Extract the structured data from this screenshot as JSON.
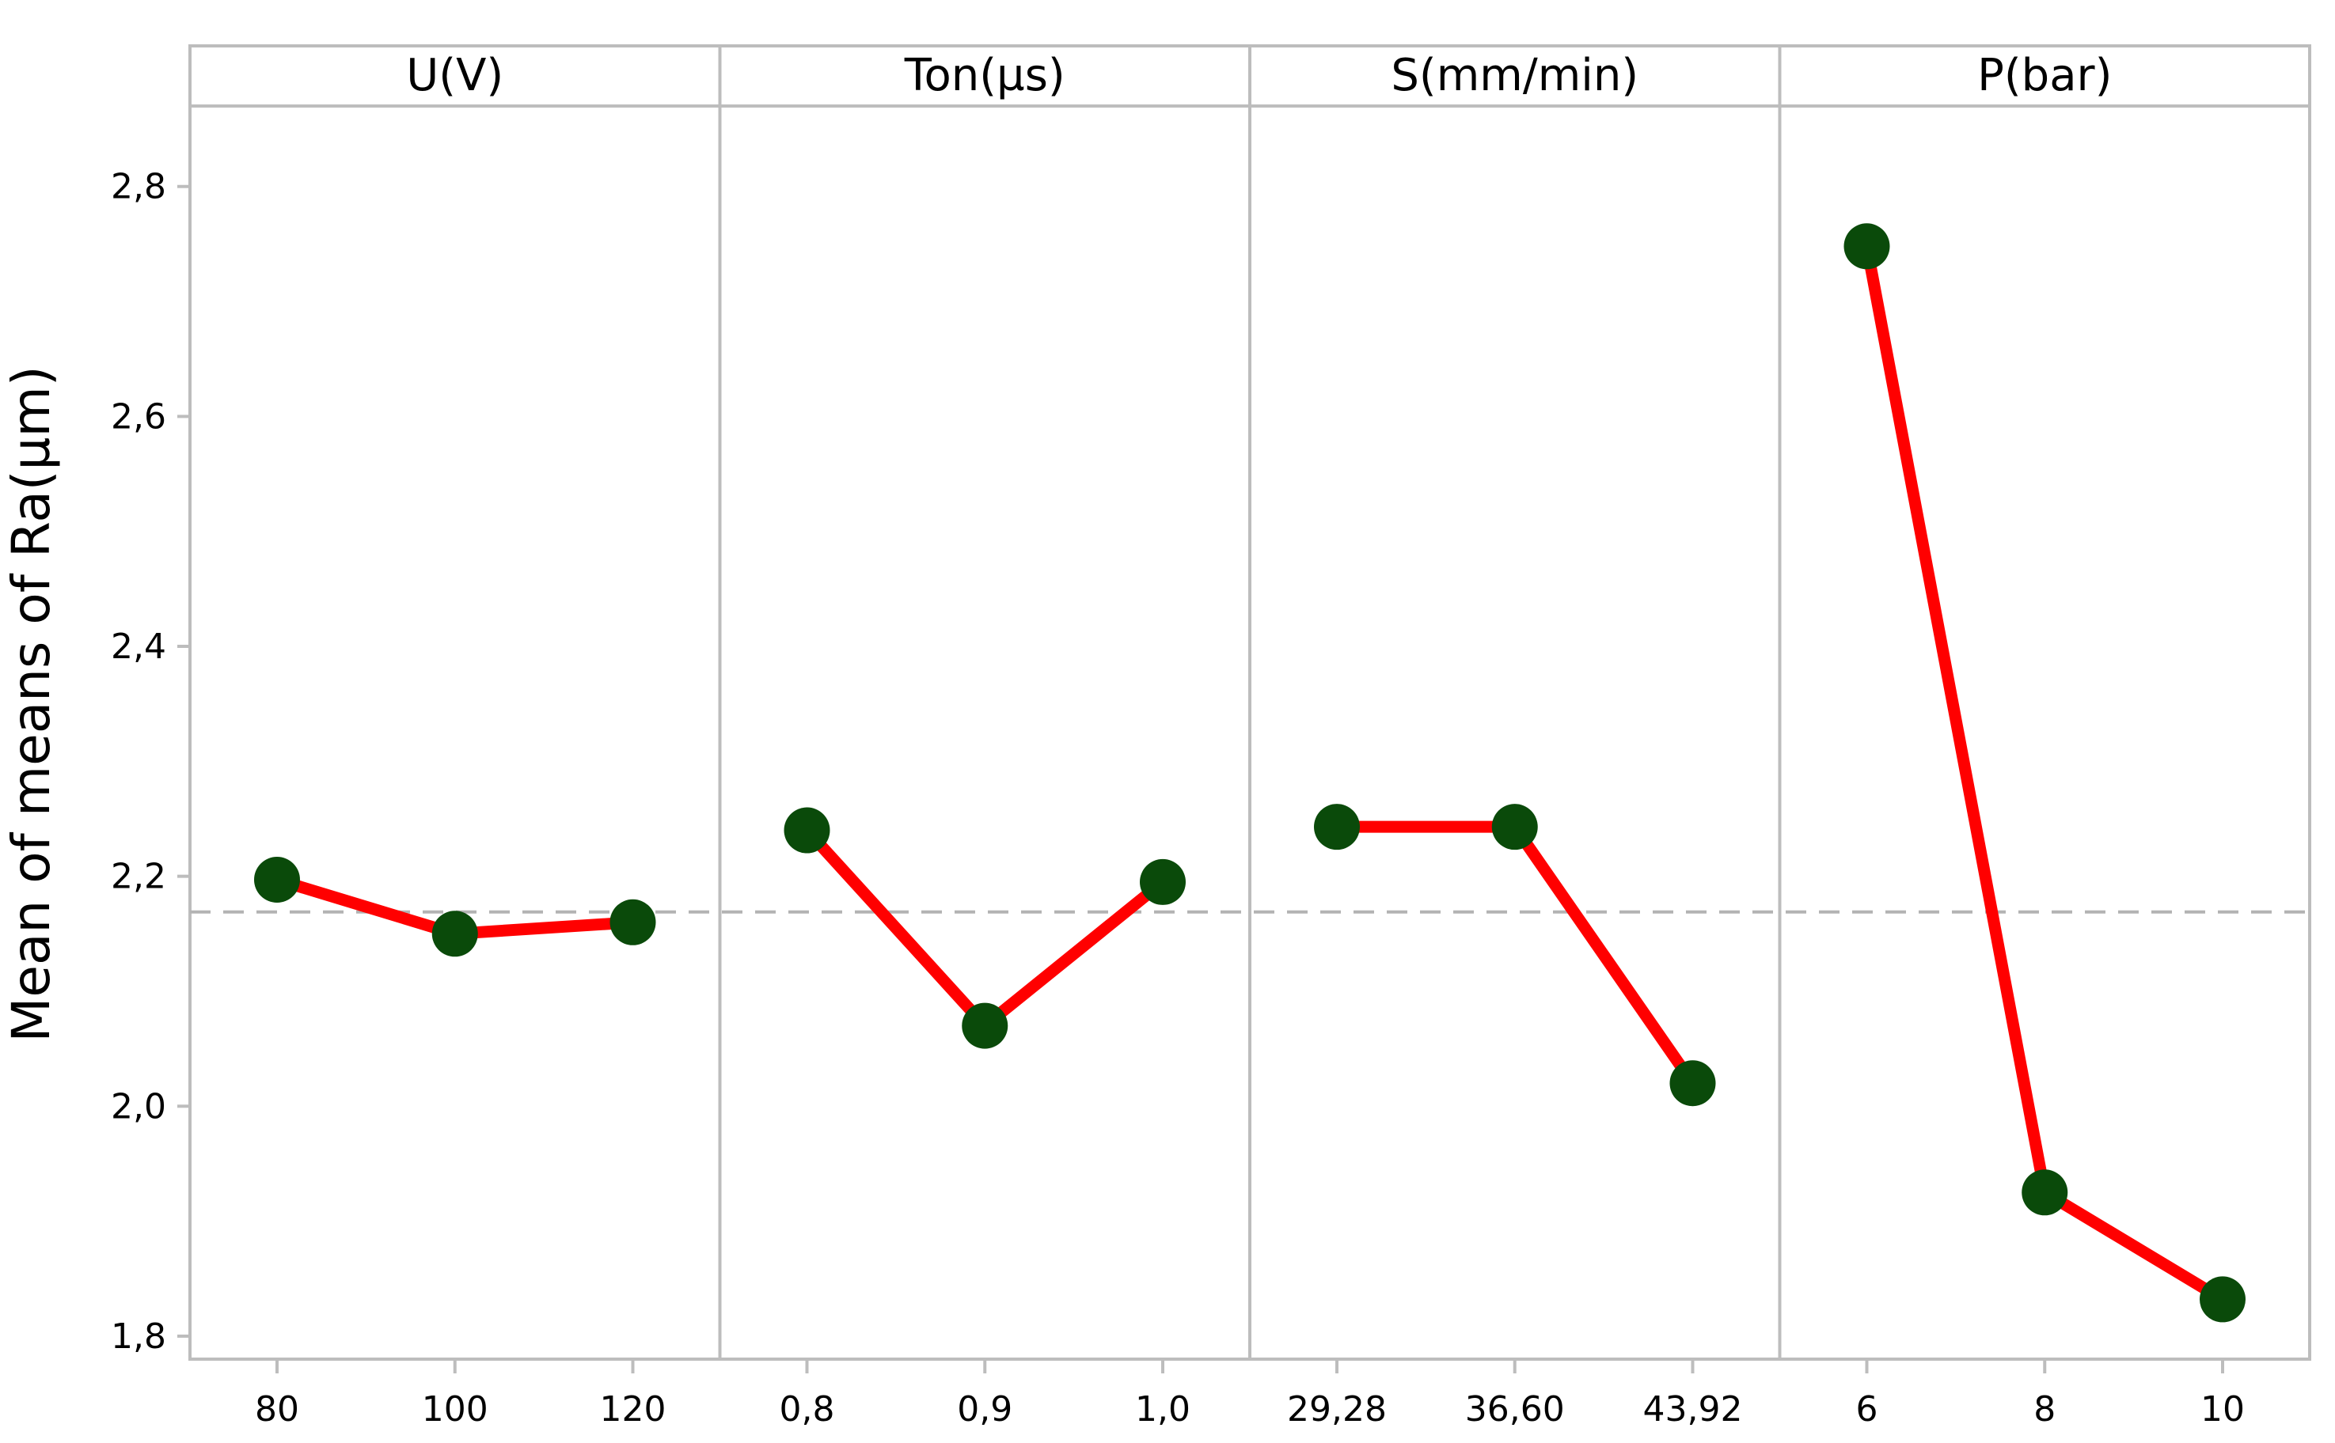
{
  "chart_data": {
    "type": "line",
    "ylabel": "Mean of means of Ra(µm)",
    "ylim": [
      1.78,
      2.87
    ],
    "yticks": [
      1.8,
      2.0,
      2.2,
      2.4,
      2.6,
      2.8
    ],
    "ytick_labels": [
      "1,8",
      "2,0",
      "2,2",
      "2,4",
      "2,6",
      "2,8"
    ],
    "reference_mean": 2.169,
    "grid": false,
    "panels": [
      {
        "title": "U(V)",
        "categories": [
          "80",
          "100",
          "120"
        ],
        "values": [
          2.197,
          2.15,
          2.16
        ]
      },
      {
        "title": "Ton(µs)",
        "categories": [
          "0,8",
          "0,9",
          "1,0"
        ],
        "values": [
          2.24,
          2.07,
          2.195
        ]
      },
      {
        "title": "S(mm/min)",
        "categories": [
          "29,28",
          "36,60",
          "43,92"
        ],
        "values": [
          2.243,
          2.243,
          2.02
        ]
      },
      {
        "title": "P(bar)",
        "categories": [
          "6",
          "8",
          "10"
        ],
        "values": [
          2.748,
          1.925,
          1.832
        ]
      }
    ],
    "colors": {
      "line": "#ff0000",
      "marker": "#0a4a0a",
      "frame": "#bdbdbd",
      "reference": "#b3b3b3"
    }
  }
}
